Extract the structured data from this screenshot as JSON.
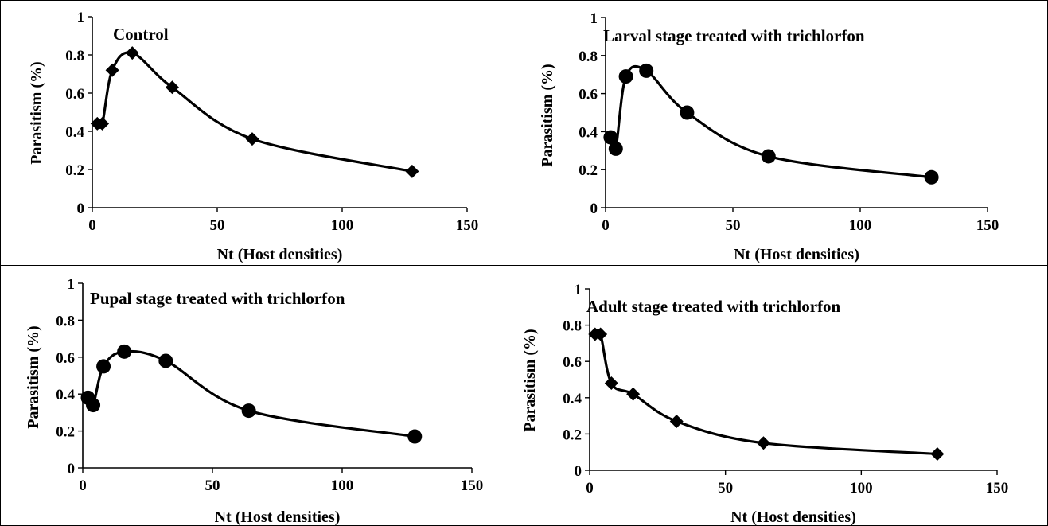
{
  "chart_data": [
    {
      "type": "line",
      "title": "Control",
      "xlabel": "Nt (Host densities)",
      "ylabel": "Parasitism (%)",
      "xlim": [
        0,
        150
      ],
      "ylim": [
        0,
        1
      ],
      "xticks": [
        0,
        50,
        100,
        150
      ],
      "yticks": [
        0,
        0.2,
        0.4,
        0.6,
        0.8,
        1
      ],
      "xtick_labels": [
        "0",
        "50",
        "100",
        "150"
      ],
      "ytick_labels": [
        "0",
        "0.2",
        "0.4",
        "0.6",
        "0.8",
        "1"
      ],
      "marker": "diamond",
      "series": [
        {
          "x": [
            2,
            4,
            8,
            16,
            32,
            64,
            128
          ],
          "values": [
            0.44,
            0.44,
            0.72,
            0.81,
            0.63,
            0.36,
            0.19
          ]
        }
      ]
    },
    {
      "type": "line",
      "title": "Larval stage treated with trichlorfon",
      "xlabel": "Nt (Host densities)",
      "ylabel": "Parasitism (%)",
      "xlim": [
        0,
        150
      ],
      "ylim": [
        0,
        1
      ],
      "xticks": [
        0,
        50,
        100,
        150
      ],
      "yticks": [
        0,
        0.2,
        0.4,
        0.6,
        0.8,
        1
      ],
      "xtick_labels": [
        "0",
        "50",
        "100",
        "150"
      ],
      "ytick_labels": [
        "0",
        "0.2",
        "0.4",
        "0.6",
        "0.8",
        "1"
      ],
      "marker": "circle",
      "series": [
        {
          "x": [
            2,
            4,
            8,
            16,
            32,
            64,
            128
          ],
          "values": [
            0.37,
            0.31,
            0.69,
            0.72,
            0.5,
            0.27,
            0.16
          ]
        }
      ]
    },
    {
      "type": "line",
      "title": "Pupal stage treated with trichlorfon",
      "xlabel": "Nt (Host densities)",
      "ylabel": "Parasitism (%)",
      "xlim": [
        0,
        150
      ],
      "ylim": [
        0,
        1
      ],
      "xticks": [
        0,
        50,
        100,
        150
      ],
      "yticks": [
        0,
        0.2,
        0.4,
        0.6,
        0.8,
        1
      ],
      "xtick_labels": [
        "0",
        "50",
        "100",
        "150"
      ],
      "ytick_labels": [
        "0",
        "0.2",
        "0.4",
        "0.6",
        "0.8",
        "1"
      ],
      "marker": "circle",
      "series": [
        {
          "x": [
            2,
            4,
            8,
            16,
            32,
            64,
            128
          ],
          "values": [
            0.38,
            0.34,
            0.55,
            0.63,
            0.58,
            0.31,
            0.17
          ]
        }
      ]
    },
    {
      "type": "line",
      "title": "Adult stage treated with trichlorfon",
      "xlabel": "Nt (Host densities)",
      "ylabel": "Parasitism (%)",
      "xlim": [
        0,
        150
      ],
      "ylim": [
        0,
        1
      ],
      "xticks": [
        0,
        50,
        100,
        150
      ],
      "yticks": [
        0,
        0.2,
        0.4,
        0.6,
        0.8,
        1
      ],
      "xtick_labels": [
        "0",
        "50",
        "100",
        "150"
      ],
      "ytick_labels": [
        "0",
        "0.2",
        "0.4",
        "0.6",
        "0.8",
        "1"
      ],
      "marker": "diamond",
      "series": [
        {
          "x": [
            2,
            4,
            8,
            16,
            32,
            64,
            128
          ],
          "values": [
            0.75,
            0.75,
            0.48,
            0.42,
            0.27,
            0.15,
            0.09
          ]
        }
      ]
    }
  ]
}
